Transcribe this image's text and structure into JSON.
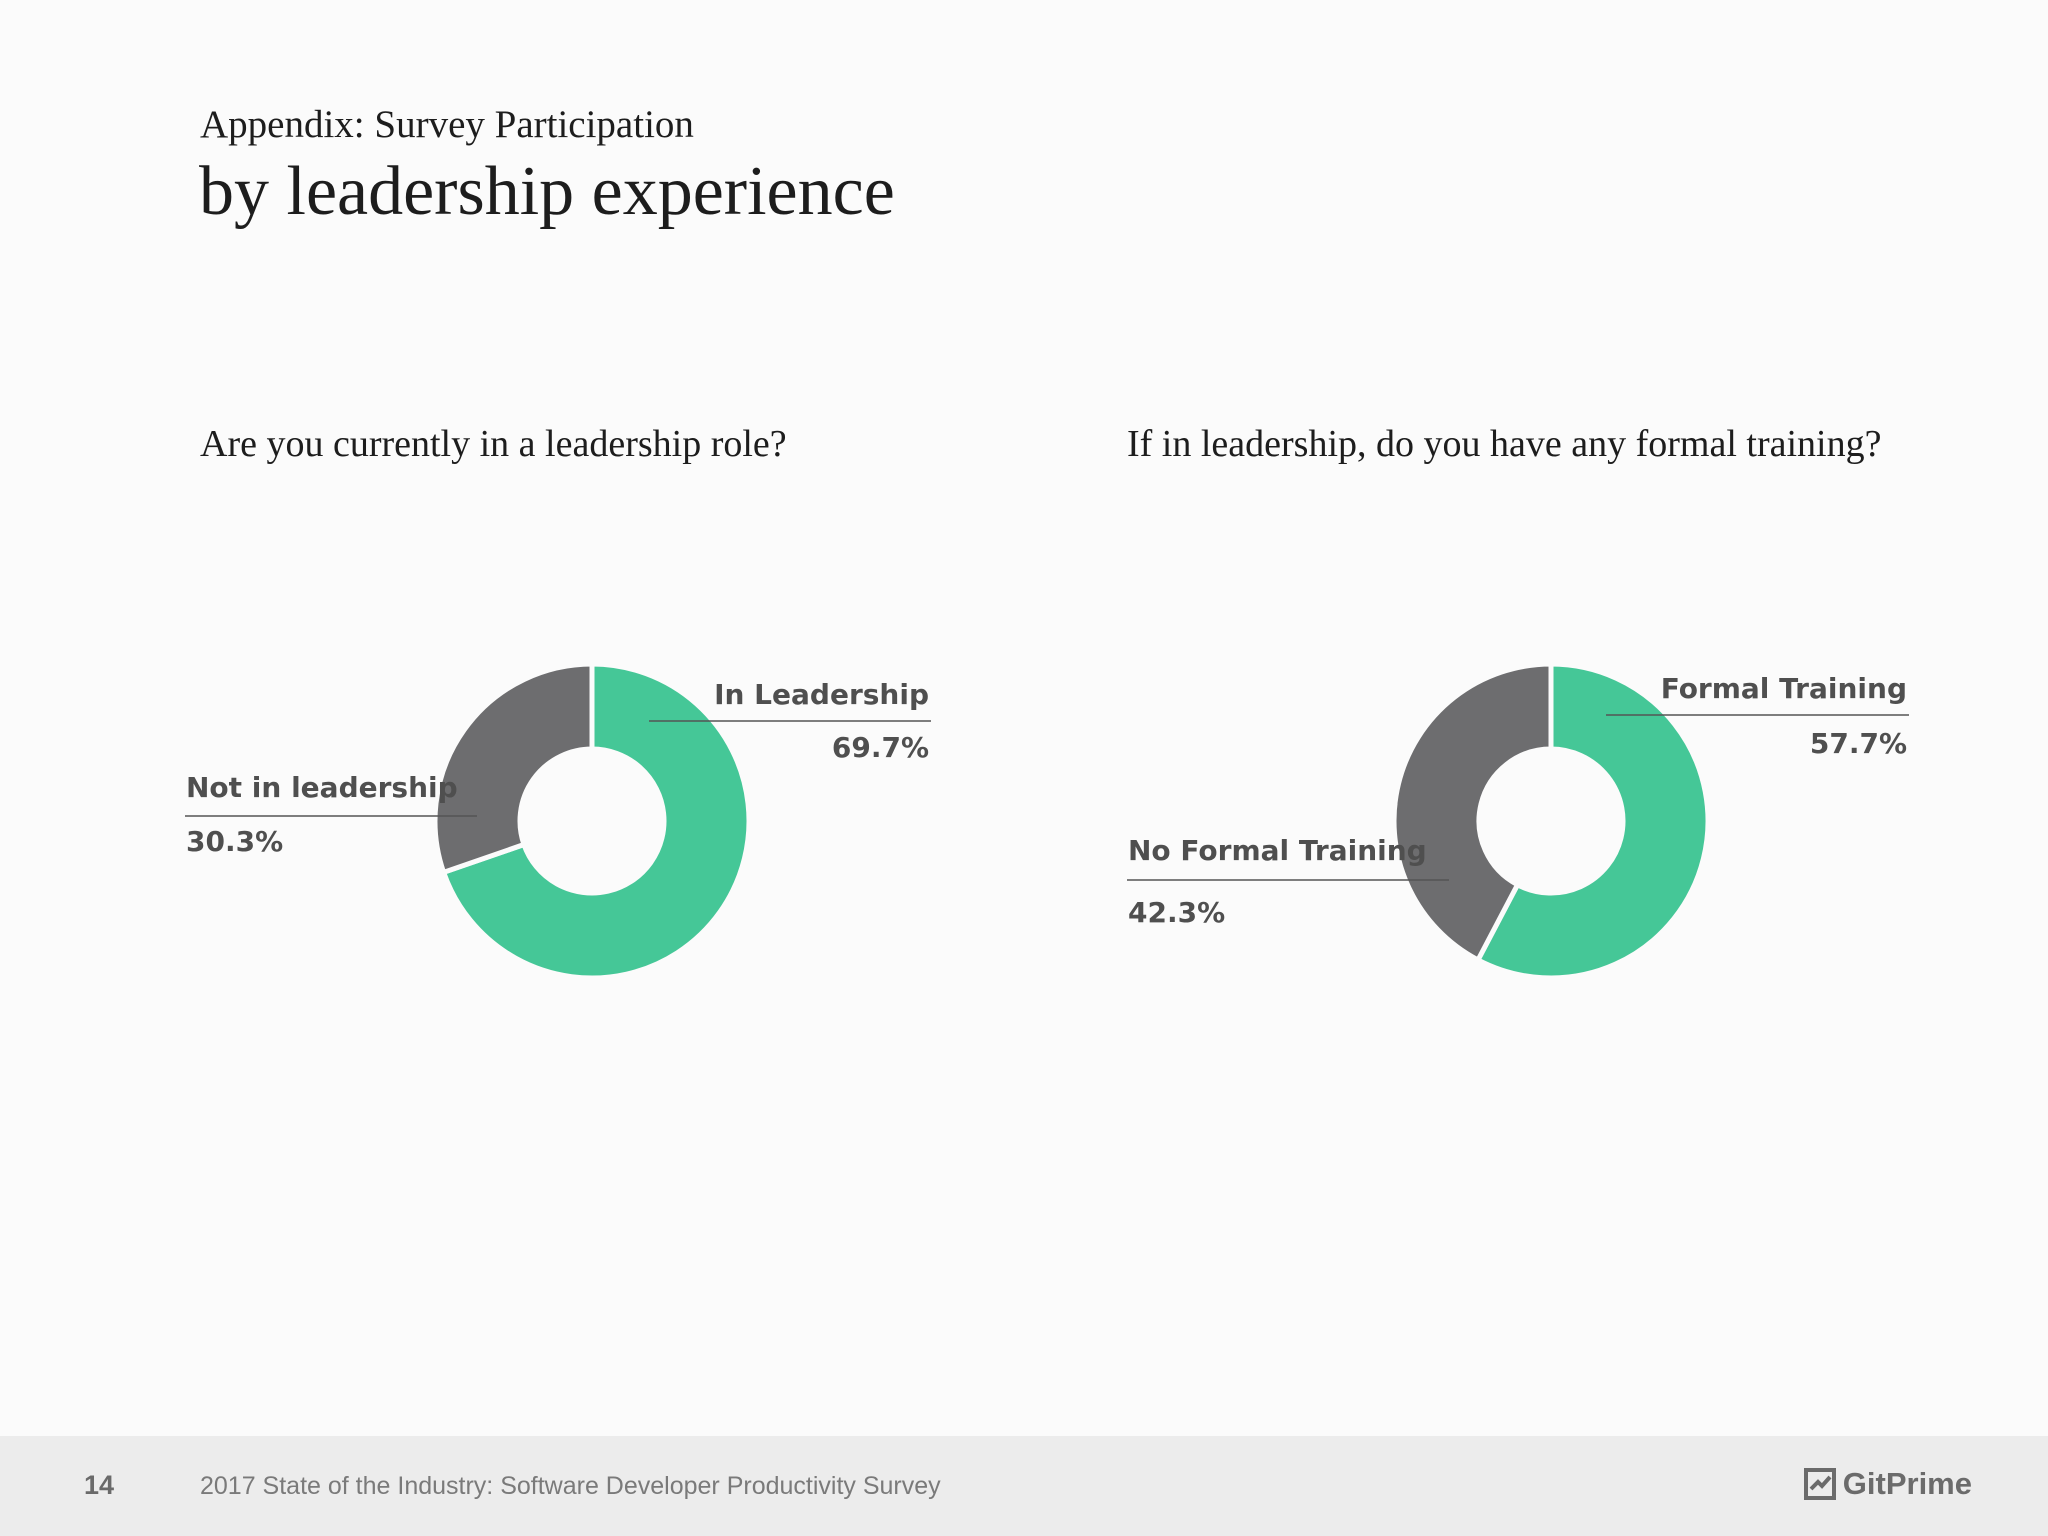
{
  "header": {
    "eyebrow": "Appendix: Survey Participation",
    "title": "by leadership experience"
  },
  "chart_data": [
    {
      "type": "pie",
      "title": "Are you currently in a leadership role?",
      "slices": [
        {
          "label": "In Leadership",
          "value": 69.7,
          "value_label": "69.7%",
          "color": "#45c797"
        },
        {
          "label": "Not in leadership",
          "value": 30.3,
          "value_label": "30.3%",
          "color": "#6d6d6f"
        }
      ],
      "donut": true
    },
    {
      "type": "pie",
      "title": "If in leadership, do you have any formal training?",
      "slices": [
        {
          "label": "Formal Training",
          "value": 57.7,
          "value_label": "57.7%",
          "color": "#45c797"
        },
        {
          "label": "No Formal Training",
          "value": 42.3,
          "value_label": "42.3%",
          "color": "#6d6d6f"
        }
      ],
      "donut": true
    }
  ],
  "footer": {
    "page_number": "14",
    "text": "2017 State of the Industry: Software Developer Productivity Survey",
    "brand": "GitPrime"
  }
}
